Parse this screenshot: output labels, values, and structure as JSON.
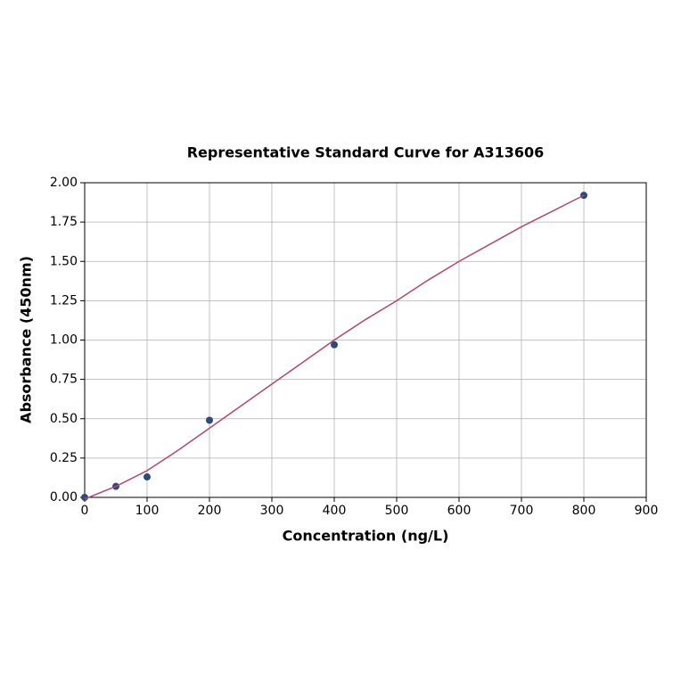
{
  "chart_data": {
    "type": "scatter",
    "title": "Representative Standard Curve for A313606",
    "x_label": "Concentration (ng/L)",
    "y_label": "Absorbance (450nm)",
    "xlim": [
      0,
      900
    ],
    "xticks": [
      0,
      100,
      200,
      300,
      400,
      500,
      600,
      700,
      800,
      900
    ],
    "ylim": [
      0,
      2
    ],
    "yticks": [
      {
        "value": 0,
        "label": "0.00"
      },
      {
        "value": 0.25,
        "label": "0.25"
      },
      {
        "value": 0.5,
        "label": "0.50"
      },
      {
        "value": 0.75,
        "label": "0.75"
      },
      {
        "value": 1,
        "label": "1.00"
      },
      {
        "value": 1.25,
        "label": "1.25"
      },
      {
        "value": 1.5,
        "label": "1.50"
      },
      {
        "value": 1.75,
        "label": "1.75"
      },
      {
        "value": 2,
        "label": "2.00"
      }
    ],
    "grid": true,
    "series": [
      {
        "mode": "markers",
        "color": "#2e4a7a",
        "x": [
          0,
          50,
          100,
          200,
          400,
          800
        ],
        "values": [
          0.0,
          0.07,
          0.13,
          0.49,
          0.97,
          1.92
        ]
      },
      {
        "mode": "line",
        "color": "#b5476a",
        "x": [
          0,
          50,
          100,
          150,
          200,
          250,
          300,
          350,
          400,
          450,
          500,
          550,
          600,
          650,
          700,
          750,
          800
        ],
        "values": [
          -0.01,
          0.07,
          0.17,
          0.3,
          0.44,
          0.58,
          0.72,
          0.86,
          1.0,
          1.13,
          1.25,
          1.38,
          1.5,
          1.61,
          1.72,
          1.82,
          1.92
        ]
      }
    ]
  }
}
